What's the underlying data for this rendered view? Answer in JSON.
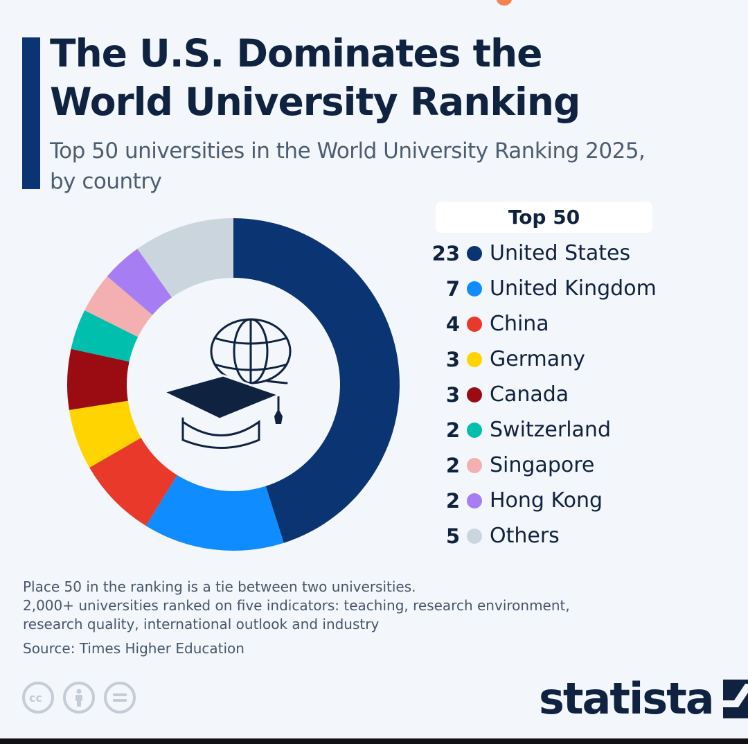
{
  "header": {
    "title_line1": "The U.S. Dominates the",
    "title_line2": "World University Ranking",
    "subtitle_line1": "Top 50 universities in the World University Ranking 2025,",
    "subtitle_line2": "by country"
  },
  "chart_data": {
    "type": "pie",
    "donut": true,
    "title": "The U.S. Dominates the World University Ranking",
    "subtitle": "Top 50 universities in the World University Ranking 2025, by country",
    "legend_title": "Top 50",
    "legend_position": "right",
    "center_icon": "graduation-globe-icon",
    "slices": [
      {
        "label": "United States",
        "value": 23,
        "color": "#0b3472"
      },
      {
        "label": "United Kingdom",
        "value": 7,
        "color": "#0f8cff"
      },
      {
        "label": "China",
        "value": 4,
        "color": "#e8392b"
      },
      {
        "label": "Germany",
        "value": 3,
        "color": "#ffd400"
      },
      {
        "label": "Canada",
        "value": 3,
        "color": "#9b0c12"
      },
      {
        "label": "Switzerland",
        "value": 2,
        "color": "#00bfad"
      },
      {
        "label": "Singapore",
        "value": 2,
        "color": "#f4afb0"
      },
      {
        "label": "Hong Kong",
        "value": 2,
        "color": "#a77df3"
      },
      {
        "label": "Others",
        "value": 5,
        "color": "#cad5dd"
      }
    ]
  },
  "notes": {
    "line1": "Place 50 in the ranking is a tie between two universities.",
    "line2": "2,000+ universities ranked on five indicators: teaching, research environment,",
    "line3": "research quality, international outlook and industry",
    "source": "Source: Times Higher Education"
  },
  "footer": {
    "brand": "statista",
    "license_icons": [
      "cc-icon",
      "attribution-icon",
      "no-derivatives-icon"
    ]
  }
}
